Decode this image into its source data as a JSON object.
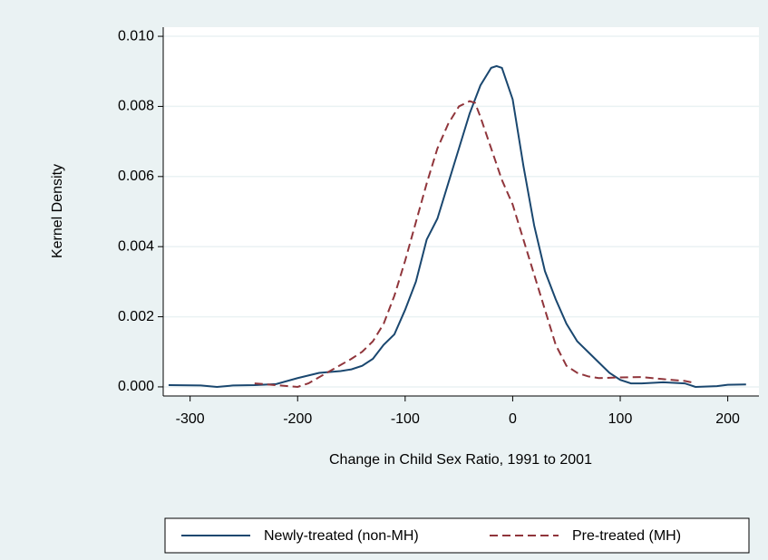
{
  "chart_data": {
    "type": "line",
    "xlabel": "Change in Child Sex Ratio, 1991 to 2001",
    "ylabel": "Kernel Density",
    "xlim": [
      -325,
      229
    ],
    "xticks": [
      -300,
      -200,
      -100,
      0,
      100,
      200
    ],
    "ylim": [
      -0.00026,
      0.01026
    ],
    "yticks": [
      {
        "value": 0,
        "label": "0.000"
      },
      {
        "value": 0.002,
        "label": "0.002"
      },
      {
        "value": 0.004,
        "label": "0.004"
      },
      {
        "value": 0.006,
        "label": "0.006"
      },
      {
        "value": 0.008,
        "label": "0.008"
      },
      {
        "value": 0.01,
        "label": "0.010"
      }
    ],
    "grid": true,
    "legend": "bottom",
    "series": [
      {
        "name": "Newly-treated (non-MH)",
        "color": "#1a476f",
        "style": "solid",
        "x": [
          -320,
          -290,
          -275,
          -260,
          -240,
          -220,
          -200,
          -180,
          -160,
          -150,
          -140,
          -130,
          -120,
          -110,
          -100,
          -90,
          -80,
          -70,
          -60,
          -50,
          -40,
          -30,
          -20,
          -15,
          -10,
          0,
          10,
          20,
          30,
          40,
          50,
          60,
          70,
          80,
          90,
          100,
          110,
          120,
          140,
          160,
          170,
          190,
          200,
          217
        ],
        "values": [
          5e-05,
          4e-05,
          0.0,
          4e-05,
          5e-05,
          8e-05,
          0.00025,
          0.0004,
          0.00045,
          0.0005,
          0.0006,
          0.0008,
          0.0012,
          0.0015,
          0.0022,
          0.003,
          0.0042,
          0.0048,
          0.0058,
          0.0068,
          0.0078,
          0.0086,
          0.0091,
          0.00915,
          0.0091,
          0.0082,
          0.0063,
          0.0046,
          0.0033,
          0.0025,
          0.0018,
          0.0013,
          0.001,
          0.0007,
          0.0004,
          0.0002,
          0.0001,
          0.0001,
          0.00013,
          0.0001,
          0.0,
          2e-05,
          6e-05,
          7e-05
        ]
      },
      {
        "name": "Pre-treated (MH)",
        "color": "#90353b",
        "style": "dashed",
        "x": [
          -240,
          -220,
          -200,
          -190,
          -170,
          -150,
          -140,
          -130,
          -120,
          -110,
          -100,
          -90,
          -80,
          -70,
          -60,
          -50,
          -40,
          -35,
          -30,
          -20,
          -10,
          0,
          10,
          20,
          30,
          40,
          50,
          60,
          70,
          80,
          100,
          120,
          140,
          160,
          168
        ],
        "values": [
          0.0001,
          5e-05,
          0.0,
          0.0001,
          0.00045,
          0.0008,
          0.001,
          0.0013,
          0.0018,
          0.0026,
          0.0036,
          0.0047,
          0.0058,
          0.0068,
          0.0075,
          0.008,
          0.00815,
          0.0081,
          0.0077,
          0.0068,
          0.0059,
          0.0052,
          0.0042,
          0.0032,
          0.0022,
          0.0012,
          0.0006,
          0.0004,
          0.0003,
          0.00025,
          0.00027,
          0.00028,
          0.00022,
          0.00017,
          0.00012
        ]
      }
    ]
  }
}
